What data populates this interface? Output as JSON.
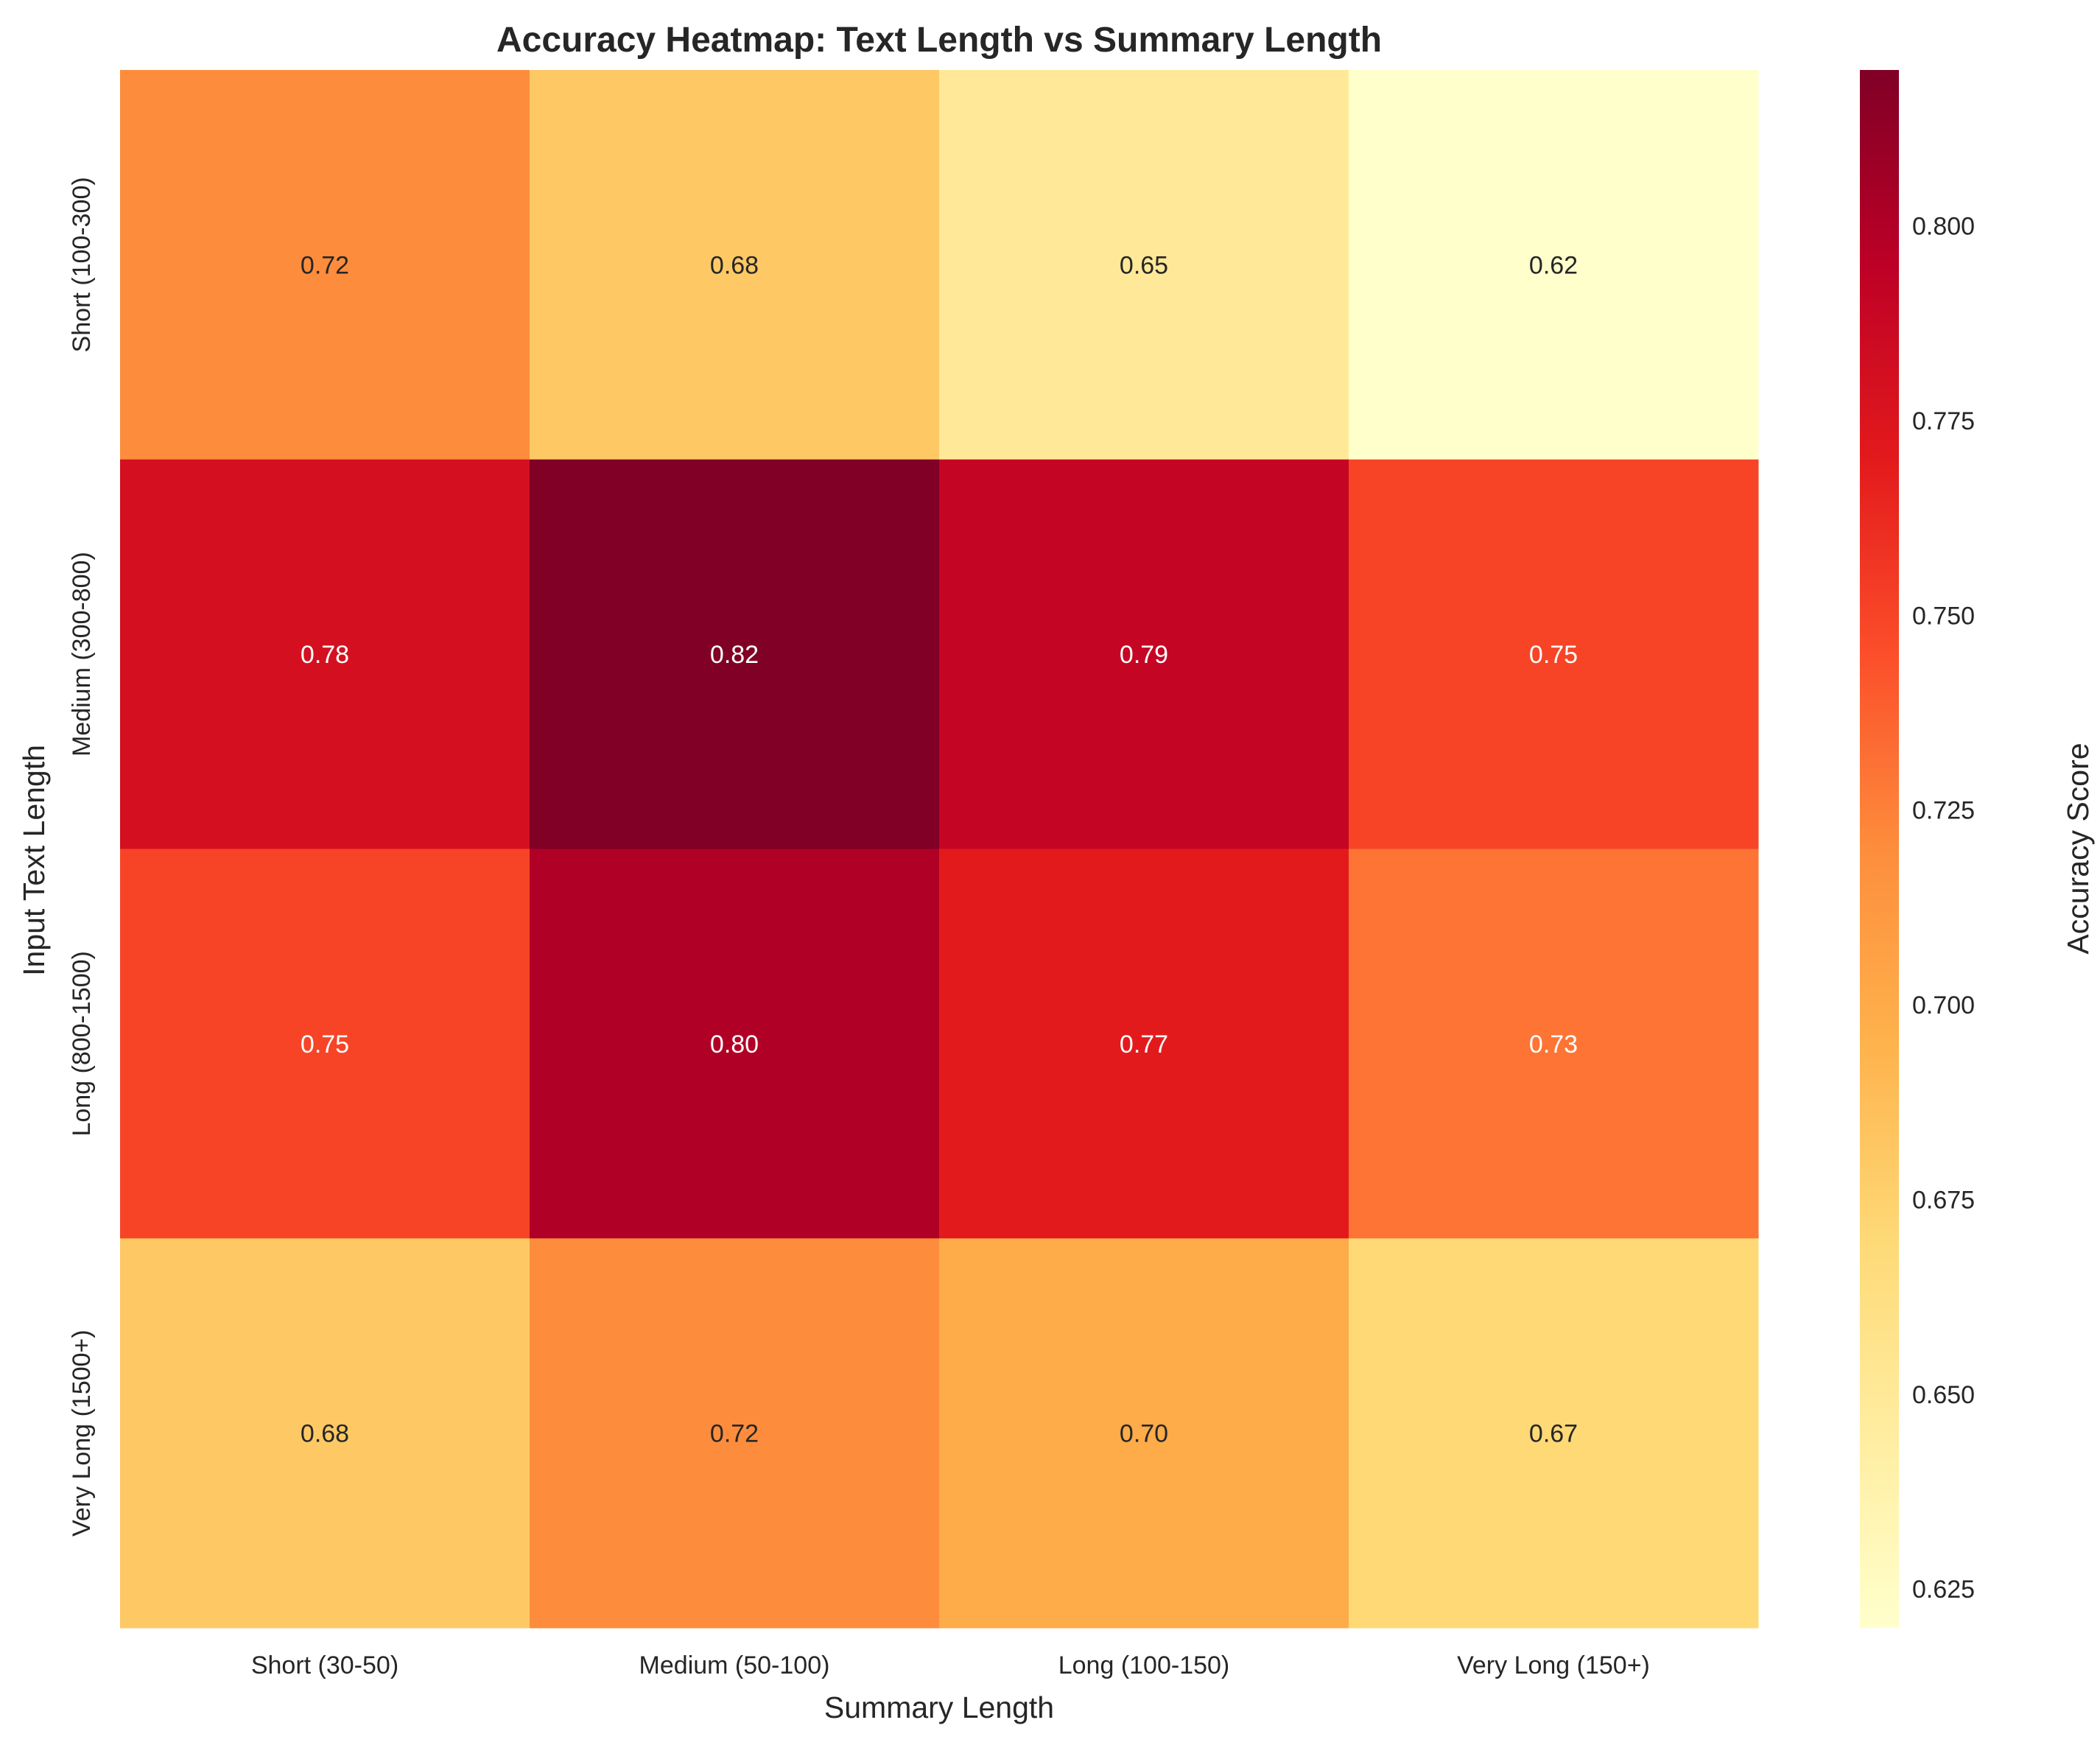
{
  "chart_data": {
    "type": "heatmap",
    "title": "Accuracy Heatmap: Text Length vs Summary Length",
    "xlabel": "Summary Length",
    "ylabel": "Input Text Length",
    "x_categories": [
      "Short (30-50)",
      "Medium (50-100)",
      "Long (100-150)",
      "Very Long (150+)"
    ],
    "y_categories": [
      "Short (100-300)",
      "Medium (300-800)",
      "Long (800-1500)",
      "Very Long (1500+)"
    ],
    "values": [
      [
        0.72,
        0.68,
        0.65,
        0.62
      ],
      [
        0.78,
        0.82,
        0.79,
        0.75
      ],
      [
        0.75,
        0.8,
        0.77,
        0.73
      ],
      [
        0.68,
        0.72,
        0.7,
        0.67
      ]
    ],
    "value_labels": [
      [
        "0.72",
        "0.68",
        "0.65",
        "0.62"
      ],
      [
        "0.78",
        "0.82",
        "0.79",
        "0.75"
      ],
      [
        "0.75",
        "0.80",
        "0.77",
        "0.73"
      ],
      [
        "0.68",
        "0.72",
        "0.70",
        "0.67"
      ]
    ],
    "colorbar": {
      "label": "Accuracy Score",
      "vmin": 0.62,
      "vmax": 0.82,
      "ticks": [
        "0.625",
        "0.650",
        "0.675",
        "0.700",
        "0.725",
        "0.750",
        "0.775",
        "0.800"
      ],
      "colormap": "YlOrRd"
    },
    "annotation_colors": {
      "light": "#ffffff",
      "dark": "#262626"
    }
  }
}
